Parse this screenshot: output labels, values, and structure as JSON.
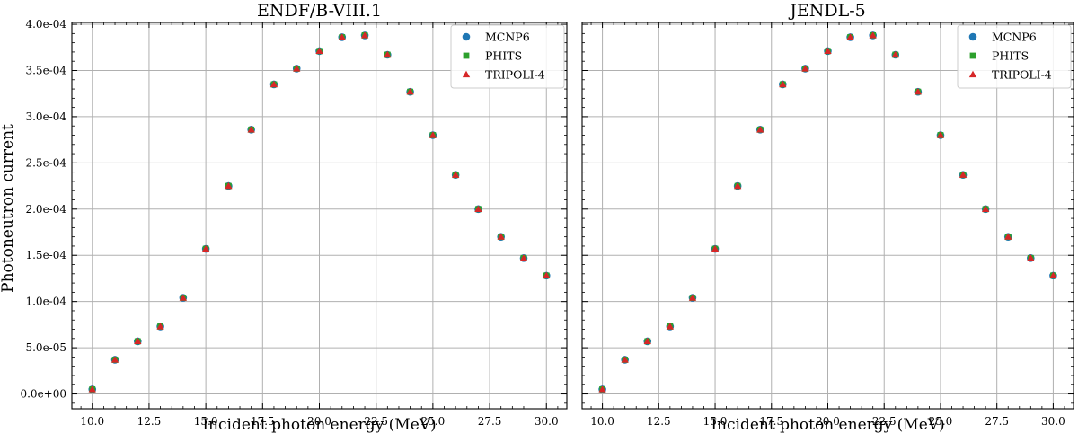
{
  "figure": {
    "ylabel": "Photoneutron current"
  },
  "chart_data": [
    {
      "type": "scatter",
      "title": "ENDF/B-VIII.1",
      "xlabel": "Incident photon energy (MeV)",
      "ylabel": "Photoneutron current",
      "xlim": [
        9.1,
        30.9
      ],
      "ylim": [
        -1.6e-05,
        0.000402
      ],
      "x_ticks": [
        "10.0",
        "12.5",
        "15.0",
        "17.5",
        "20.0",
        "22.5",
        "25.0",
        "27.5",
        "30.0"
      ],
      "y_ticks": [
        "0.0e+00",
        "5.0e-05",
        "1.0e-04",
        "1.5e-04",
        "2.0e-04",
        "2.5e-04",
        "3.0e-04",
        "3.5e-04",
        "4.0e-04"
      ],
      "grid": true,
      "legend_position": "top-right",
      "x": [
        10,
        11,
        12,
        13,
        14,
        15,
        16,
        17,
        18,
        19,
        20,
        21,
        22,
        23,
        24,
        25,
        26,
        27,
        28,
        29,
        30
      ],
      "series": [
        {
          "name": "MCNP6",
          "marker": "circle",
          "color": "#1f77b4",
          "values": [
            5e-06,
            3.7e-05,
            5.7e-05,
            7.3e-05,
            0.000104,
            0.000157,
            0.000225,
            0.000286,
            0.000335,
            0.000352,
            0.000371,
            0.000386,
            0.000388,
            0.000367,
            0.000327,
            0.00028,
            0.000237,
            0.0002,
            0.00017,
            0.000147,
            0.000128
          ]
        },
        {
          "name": "PHITS",
          "marker": "square",
          "color": "#2ca02c",
          "values": [
            5e-06,
            3.7e-05,
            5.7e-05,
            7.3e-05,
            0.000104,
            0.000157,
            0.000225,
            0.000286,
            0.000335,
            0.000352,
            0.000371,
            0.000386,
            0.000388,
            0.000367,
            0.000327,
            0.00028,
            0.000237,
            0.0002,
            0.00017,
            0.000147,
            0.000128
          ]
        },
        {
          "name": "TRIPOLI-4",
          "marker": "triangle",
          "color": "#d62728",
          "values": [
            5e-06,
            3.7e-05,
            5.7e-05,
            7.3e-05,
            0.000104,
            0.000157,
            0.000225,
            0.000286,
            0.000335,
            0.000352,
            0.000371,
            0.000386,
            0.000388,
            0.000367,
            0.000327,
            0.00028,
            0.000237,
            0.0002,
            0.00017,
            0.000147,
            0.000128
          ]
        }
      ]
    },
    {
      "type": "scatter",
      "title": "JENDL-5",
      "xlabel": "Incident photon energy (MeV)",
      "ylabel": "",
      "xlim": [
        9.1,
        30.9
      ],
      "ylim": [
        -1.6e-05,
        0.000402
      ],
      "x_ticks": [
        "10.0",
        "12.5",
        "15.0",
        "17.5",
        "20.0",
        "22.5",
        "25.0",
        "27.5",
        "30.0"
      ],
      "y_ticks": [],
      "grid": true,
      "legend_position": "top-right",
      "x": [
        10,
        11,
        12,
        13,
        14,
        15,
        16,
        17,
        18,
        19,
        20,
        21,
        22,
        23,
        24,
        25,
        26,
        27,
        28,
        29,
        30
      ],
      "series": [
        {
          "name": "MCNP6",
          "marker": "circle",
          "color": "#1f77b4",
          "values": [
            5e-06,
            3.7e-05,
            5.7e-05,
            7.3e-05,
            0.000104,
            0.000157,
            0.000225,
            0.000286,
            0.000335,
            0.000352,
            0.000371,
            0.000386,
            0.000388,
            0.000367,
            0.000327,
            0.00028,
            0.000237,
            0.0002,
            0.00017,
            0.000147,
            0.000128
          ]
        },
        {
          "name": "PHITS",
          "marker": "square",
          "color": "#2ca02c",
          "values": [
            5e-06,
            3.7e-05,
            5.7e-05,
            7.3e-05,
            0.000104,
            0.000157,
            0.000225,
            0.000286,
            0.000335,
            0.000352,
            0.000371,
            0.000386,
            0.000388,
            0.000367,
            0.000327,
            0.00028,
            0.000237,
            0.0002,
            0.00017,
            0.000147,
            0.000128
          ]
        },
        {
          "name": "TRIPOLI-4",
          "marker": "triangle",
          "color": "#d62728",
          "values": [
            5e-06,
            3.7e-05,
            5.7e-05,
            7.3e-05,
            0.000104,
            0.000157,
            0.000225,
            0.000286,
            0.000335,
            0.000352,
            0.000371,
            0.000386,
            0.000388,
            0.000367,
            0.000327,
            0.00028,
            0.000237,
            0.0002,
            0.00017,
            0.000147,
            0.000128
          ]
        }
      ]
    }
  ]
}
